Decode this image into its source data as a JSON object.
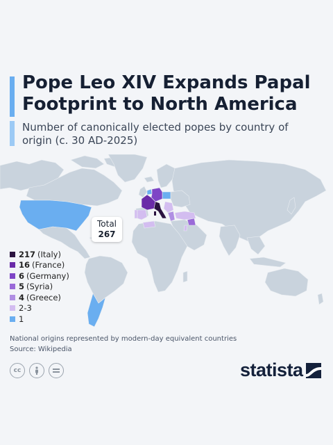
{
  "title": "Pope Leo XIV Expands Papal Footprint to North America",
  "subtitle": "Number of canonically elected popes by country of origin (c. 30 AD-2025)",
  "total": {
    "label": "Total",
    "value": "267"
  },
  "legend": [
    {
      "value": "217",
      "label": "(Italy)",
      "color": "#2b1340"
    },
    {
      "value": "16",
      "label": "(France)",
      "color": "#6a2ba8"
    },
    {
      "value": "6",
      "label": "(Germany)",
      "color": "#7e45c6"
    },
    {
      "value": "5",
      "label": "(Syria)",
      "color": "#9a6ad8"
    },
    {
      "value": "4",
      "label": "(Greece)",
      "color": "#b08fe3"
    },
    {
      "value": "2-3",
      "label": "",
      "color": "#d3bdf0"
    },
    {
      "value": "1",
      "label": "",
      "color": "#6aaef0"
    }
  ],
  "footnote": "National origins represented by modern-day equivalent countries",
  "source": "Source: Wikipedia",
  "brand": "statista",
  "colors": {
    "land": "#c9d3dd",
    "background": "#f3f5f8"
  },
  "license_icons": [
    "cc-icon",
    "attribution-icon",
    "no-derivatives-icon"
  ]
}
